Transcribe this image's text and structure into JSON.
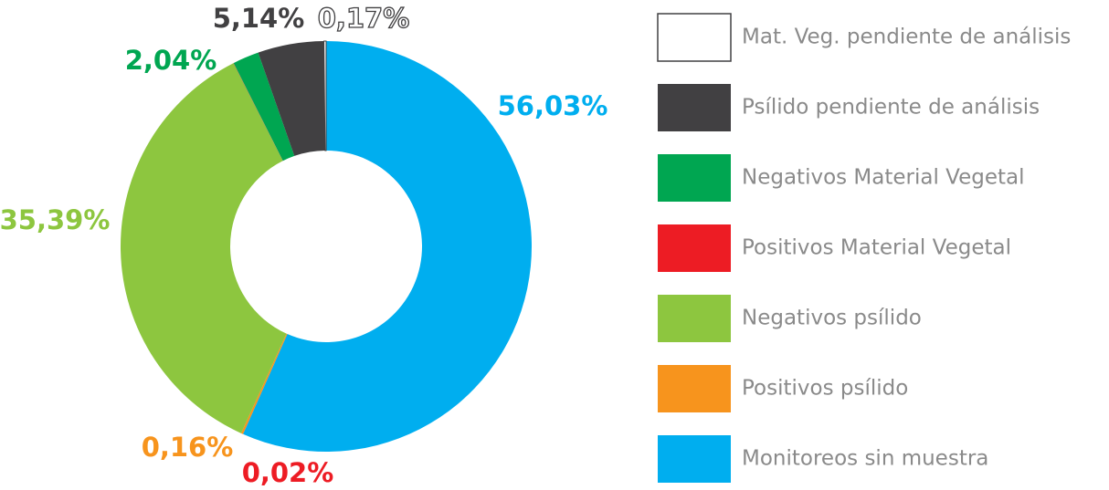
{
  "chart_data": {
    "type": "donut",
    "categories": [
      "Mat. Veg. pendiente de análisis",
      "Psílido pendiente de análisis",
      "Negativos Material Vegetal",
      "Positivos Material Vegetal",
      "Negativos psílido",
      "Positivos psílido",
      "Monitoreos sin muestra"
    ],
    "values": [
      0.17,
      5.14,
      2.04,
      0.02,
      35.39,
      0.16,
      56.03
    ],
    "value_labels": [
      "0,17%",
      "5,14%",
      "2,04%",
      "0,02%",
      "35,39%",
      "0,16%",
      "56,03%"
    ],
    "colors": [
      "#ffffff",
      "#414042",
      "#00a651",
      "#ed1c24",
      "#8dc63f",
      "#f7941d",
      "#00aeef"
    ],
    "legend": "right"
  }
}
